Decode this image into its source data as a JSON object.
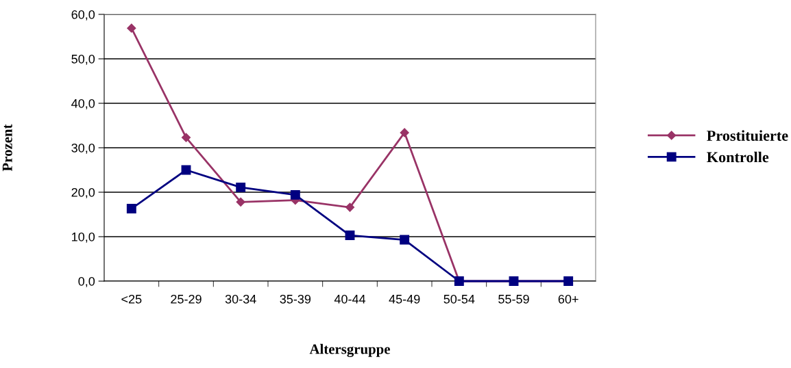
{
  "chart_data": {
    "type": "line",
    "xlabel": "Altersgruppe",
    "ylabel": "Prozent",
    "categories": [
      "<25",
      "25-29",
      "30-34",
      "35-39",
      "40-44",
      "45-49",
      "50-54",
      "55-59",
      "60+"
    ],
    "series": [
      {
        "name": "Prostituierte",
        "color": "#993366",
        "marker": "diamond",
        "values": [
          56.9,
          32.3,
          17.8,
          18.2,
          16.6,
          33.4,
          0,
          0,
          0
        ]
      },
      {
        "name": "Kontrolle",
        "color": "#000080",
        "marker": "square",
        "values": [
          16.3,
          25.0,
          21.1,
          19.4,
          10.3,
          9.3,
          0,
          0,
          0
        ]
      }
    ],
    "ylim": [
      0,
      60
    ],
    "yticks": [
      {
        "value": 0,
        "label": "0,0"
      },
      {
        "value": 10,
        "label": "10,0"
      },
      {
        "value": 20,
        "label": "20,0"
      },
      {
        "value": 30,
        "label": "30,0"
      },
      {
        "value": 40,
        "label": "40,0"
      },
      {
        "value": 50,
        "label": "50,0"
      },
      {
        "value": 60,
        "label": "60,0"
      }
    ],
    "grid": "y",
    "legend": "right",
    "line_style": "solid"
  }
}
